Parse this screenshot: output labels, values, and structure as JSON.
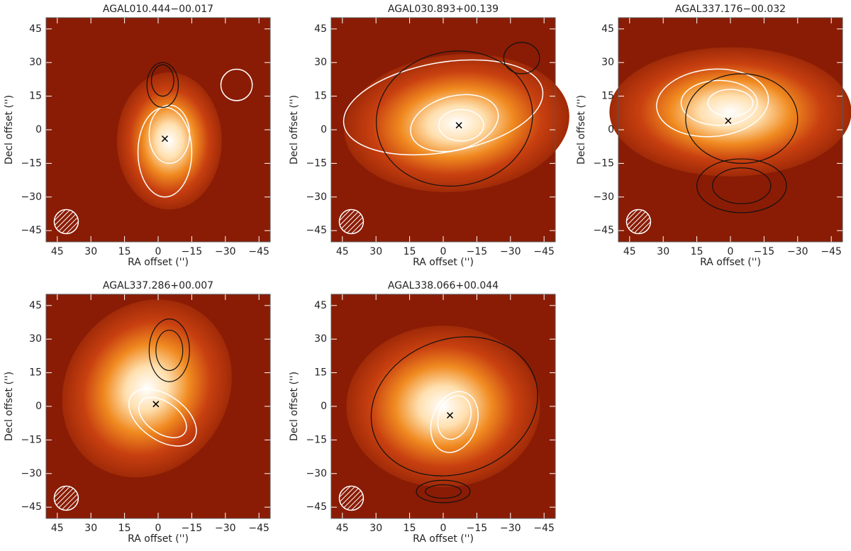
{
  "chart_data": [
    {
      "type": "image",
      "title": "AGAL010.444−00.017",
      "xlabel": "RA offset ('')",
      "ylabel": "Decl offset ('')",
      "xlim": [
        50,
        -50
      ],
      "ylim": [
        -50,
        50
      ],
      "xticks": [
        45,
        30,
        15,
        0,
        -15,
        -30,
        -45
      ],
      "yticks": [
        -45,
        -30,
        -15,
        0,
        15,
        30,
        45
      ],
      "x": [
        -3
      ],
      "values": [
        -4
      ]
    },
    {
      "type": "image",
      "title": "AGAL030.893+00.139",
      "xlabel": "RA offset ('')",
      "ylabel": "Decl offset ('')",
      "xlim": [
        50,
        -50
      ],
      "ylim": [
        -50,
        50
      ],
      "xticks": [
        45,
        30,
        15,
        0,
        -15,
        -30,
        -45
      ],
      "yticks": [
        -45,
        -30,
        -15,
        0,
        15,
        30,
        45
      ],
      "x": [
        -7
      ],
      "values": [
        2
      ]
    },
    {
      "type": "image",
      "title": "AGAL337.176−00.032",
      "xlabel": "RA offset ('')",
      "ylabel": "Decl offset ('')",
      "xlim": [
        50,
        -50
      ],
      "ylim": [
        -50,
        50
      ],
      "xticks": [
        45,
        30,
        15,
        0,
        -15,
        -30,
        -45
      ],
      "yticks": [
        -45,
        -30,
        -15,
        0,
        15,
        30,
        45
      ],
      "x": [
        1
      ],
      "values": [
        4
      ]
    },
    {
      "type": "image",
      "title": "AGAL337.286+00.007",
      "xlabel": "RA offset ('')",
      "ylabel": "Decl offset ('')",
      "xlim": [
        50,
        -50
      ],
      "ylim": [
        -50,
        50
      ],
      "xticks": [
        45,
        30,
        15,
        0,
        -15,
        -30,
        -45
      ],
      "yticks": [
        -45,
        -30,
        -15,
        0,
        15,
        30,
        45
      ],
      "x": [
        1
      ],
      "values": [
        1
      ]
    },
    {
      "type": "image",
      "title": "AGAL338.066+00.044",
      "xlabel": "RA offset ('')",
      "ylabel": "Decl offset ('')",
      "xlim": [
        50,
        -50
      ],
      "ylim": [
        -50,
        50
      ],
      "xticks": [
        45,
        30,
        15,
        0,
        -15,
        -30,
        -45
      ],
      "yticks": [
        -45,
        -30,
        -15,
        0,
        15,
        30,
        45
      ],
      "x": [
        -3
      ],
      "values": [
        -4
      ]
    }
  ]
}
